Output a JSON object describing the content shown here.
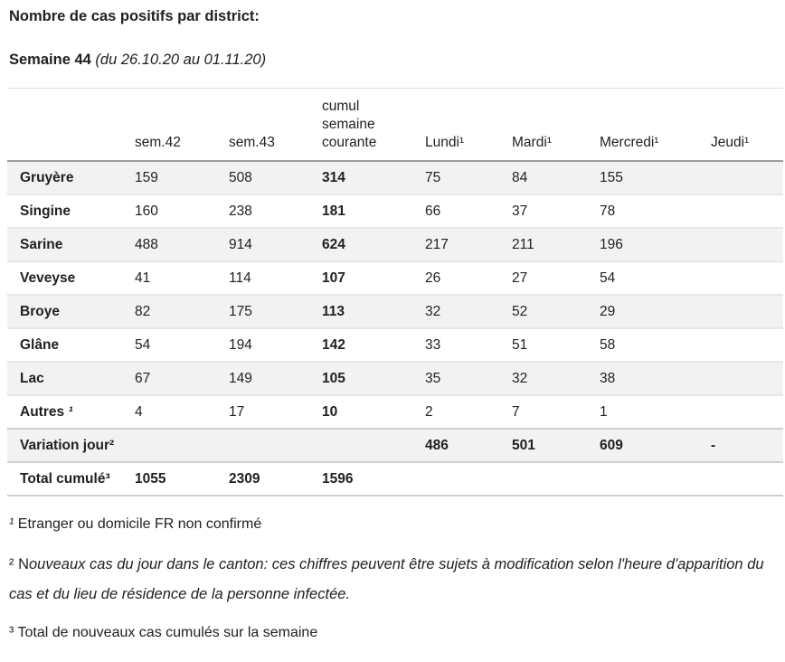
{
  "header": {
    "title": "Nombre de cas positifs par district:",
    "week_label": "Semaine 44",
    "week_range": "(du 26.10.20 au 01.11.20)"
  },
  "table": {
    "columns": [
      "",
      "sem.42",
      "sem.43",
      "cumul semaine courante",
      "Lundi¹",
      "Mardi¹",
      "Mercredi¹",
      "Jeudi¹"
    ],
    "rows": [
      {
        "type": "district",
        "label": "Gruyère",
        "cells": [
          "159",
          "508",
          "314",
          "75",
          "84",
          "155",
          ""
        ]
      },
      {
        "type": "district",
        "label": "Singine",
        "cells": [
          "160",
          "238",
          "181",
          "66",
          "37",
          "78",
          ""
        ]
      },
      {
        "type": "district",
        "label": "Sarine",
        "cells": [
          "488",
          "914",
          "624",
          "217",
          "211",
          "196",
          ""
        ]
      },
      {
        "type": "district",
        "label": "Veveyse",
        "cells": [
          "41",
          "114",
          "107",
          "26",
          "27",
          "54",
          ""
        ]
      },
      {
        "type": "district",
        "label": "Broye",
        "cells": [
          "82",
          "175",
          "113",
          "32",
          "52",
          "29",
          ""
        ]
      },
      {
        "type": "district",
        "label": "Glâne",
        "cells": [
          "54",
          "194",
          "142",
          "33",
          "51",
          "58",
          ""
        ]
      },
      {
        "type": "district",
        "label": "Lac",
        "cells": [
          "67",
          "149",
          "105",
          "35",
          "32",
          "38",
          ""
        ]
      },
      {
        "type": "district autres",
        "label": "Autres",
        "sup": "¹",
        "sup_italic": true,
        "cells": [
          "4",
          "17",
          "10",
          "2",
          "7",
          "1",
          ""
        ]
      },
      {
        "type": "variation",
        "label": "Variation jour²",
        "cells": [
          "",
          "",
          "",
          "486",
          "501",
          "609",
          "-"
        ]
      },
      {
        "type": "total",
        "label": "Total cumulé³",
        "cells": [
          "1055",
          "2309",
          "1596",
          "",
          "",
          "",
          ""
        ]
      }
    ]
  },
  "footnotes": {
    "f1": {
      "sup": "¹",
      "text": "Etranger ou domicile FR non confirmé"
    },
    "f2": {
      "sup": "²",
      "lead": " N",
      "italic": "ouveaux cas du jour dans le canton: ces chiffres peuvent être sujets à modification selon l'heure d'apparition du cas et du lieu de résidence de la personne infectée."
    },
    "f3": {
      "sup": "³",
      "text": "Total de nouveaux cas cumulés sur la semaine"
    }
  },
  "colors": {
    "text": "#212121",
    "row_stripe": "#f2f2f2",
    "header_rule": "#9e9e9e",
    "row_rule": "#e7e7e7",
    "section_rule": "#cfcfcf"
  }
}
